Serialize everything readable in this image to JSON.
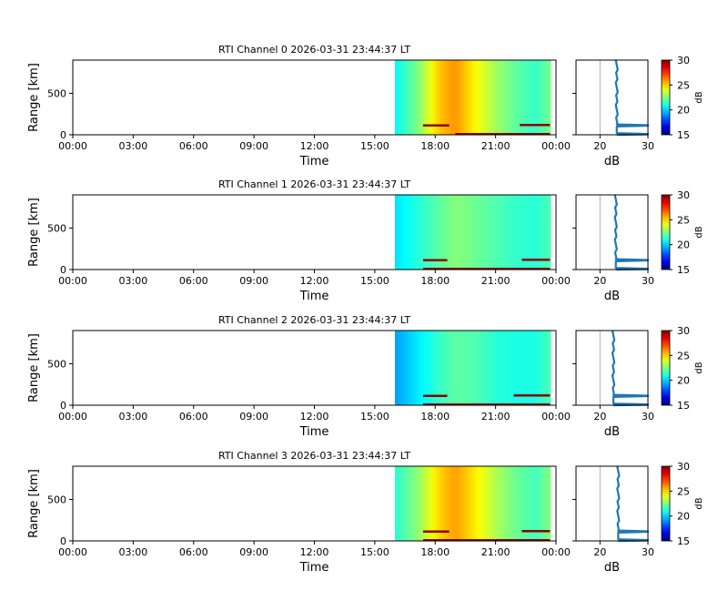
{
  "chart_data": [
    {
      "type": "heatmap",
      "title": "RTI Channel 0 2026-03-31 23:44:37 LT",
      "xlabel": "Time",
      "ylabel": "Range [km]",
      "xticks": [
        "00:00",
        "03:00",
        "06:00",
        "09:00",
        "12:00",
        "15:00",
        "18:00",
        "21:00",
        "00:00"
      ],
      "xlim_hours": [
        0,
        24
      ],
      "yticks": [
        "0",
        "500"
      ],
      "ylim": [
        0,
        900
      ],
      "data_start_hour": 16.0,
      "data_end_hour": 23.75,
      "noise_profile_db": [
        [
          16.0,
          20.6
        ],
        [
          17.2,
          22.6
        ],
        [
          18.2,
          25.2
        ],
        [
          19.0,
          26.0
        ],
        [
          20.0,
          24.4
        ],
        [
          21.0,
          23.0
        ],
        [
          22.0,
          22.0
        ],
        [
          23.0,
          21.4
        ],
        [
          23.75,
          22.4
        ]
      ],
      "echo_bands": [
        {
          "start": 17.4,
          "end": 18.7,
          "range_km": 110
        },
        {
          "start": 19.0,
          "end": 23.7,
          "range_km": 5
        },
        {
          "start": 22.2,
          "end": 23.7,
          "range_km": 115
        }
      ],
      "profile": {
        "xlabel": "dB",
        "xticks": [
          "20",
          "30"
        ],
        "xlim": [
          15,
          30
        ],
        "noise_level_db": 23.5,
        "echo_level_db": 30
      },
      "colorbar": {
        "label": "dB",
        "ticks": [
          "15",
          "20",
          "25",
          "30"
        ],
        "range": [
          15,
          30
        ]
      }
    },
    {
      "type": "heatmap",
      "title": "RTI Channel 1 2026-03-31 23:44:37 LT",
      "xlabel": "Time",
      "ylabel": "Range [km]",
      "xticks": [
        "00:00",
        "03:00",
        "06:00",
        "09:00",
        "12:00",
        "15:00",
        "18:00",
        "21:00",
        "00:00"
      ],
      "xlim_hours": [
        0,
        24
      ],
      "yticks": [
        "0",
        "500"
      ],
      "ylim": [
        0,
        900
      ],
      "data_start_hour": 16.0,
      "data_end_hour": 23.75,
      "noise_profile_db": [
        [
          16.0,
          20.2
        ],
        [
          17.2,
          21.2
        ],
        [
          18.2,
          22.0
        ],
        [
          19.0,
          22.6
        ],
        [
          20.0,
          22.2
        ],
        [
          21.0,
          21.8
        ],
        [
          22.0,
          21.4
        ],
        [
          23.0,
          21.2
        ],
        [
          23.75,
          21.8
        ]
      ],
      "echo_bands": [
        {
          "start": 17.4,
          "end": 18.6,
          "range_km": 110
        },
        {
          "start": 17.4,
          "end": 23.7,
          "range_km": 5
        },
        {
          "start": 22.3,
          "end": 23.7,
          "range_km": 115
        }
      ],
      "profile": {
        "xlabel": "dB",
        "xticks": [
          "20",
          "30"
        ],
        "xlim": [
          15,
          30
        ],
        "noise_level_db": 23.3,
        "echo_level_db": 30
      },
      "colorbar": {
        "label": "dB",
        "ticks": [
          "15",
          "20",
          "25",
          "30"
        ],
        "range": [
          15,
          30
        ]
      }
    },
    {
      "type": "heatmap",
      "title": "RTI Channel 2 2026-03-31 23:44:37 LT",
      "xlabel": "Time",
      "ylabel": "Range [km]",
      "xticks": [
        "00:00",
        "03:00",
        "06:00",
        "09:00",
        "12:00",
        "15:00",
        "18:00",
        "21:00",
        "00:00"
      ],
      "xlim_hours": [
        0,
        24
      ],
      "yticks": [
        "0",
        "500"
      ],
      "ylim": [
        0,
        900
      ],
      "data_start_hour": 16.0,
      "data_end_hour": 23.75,
      "noise_profile_db": [
        [
          16.0,
          19.2
        ],
        [
          17.2,
          20.4
        ],
        [
          18.2,
          21.4
        ],
        [
          19.0,
          22.0
        ],
        [
          20.0,
          21.8
        ],
        [
          21.0,
          21.2
        ],
        [
          22.0,
          21.0
        ],
        [
          23.0,
          21.0
        ],
        [
          23.75,
          21.8
        ]
      ],
      "echo_bands": [
        {
          "start": 17.4,
          "end": 18.6,
          "range_km": 110
        },
        {
          "start": 17.4,
          "end": 23.7,
          "range_km": 5
        },
        {
          "start": 21.9,
          "end": 23.7,
          "range_km": 115
        }
      ],
      "profile": {
        "xlabel": "dB",
        "xticks": [
          "20",
          "30"
        ],
        "xlim": [
          15,
          30
        ],
        "noise_level_db": 22.8,
        "echo_level_db": 30
      },
      "colorbar": {
        "label": "dB",
        "ticks": [
          "15",
          "20",
          "25",
          "30"
        ],
        "range": [
          15,
          30
        ]
      }
    },
    {
      "type": "heatmap",
      "title": "RTI Channel 3 2026-03-31 23:44:37 LT",
      "xlabel": "Time",
      "ylabel": "Range [km]",
      "xticks": [
        "00:00",
        "03:00",
        "06:00",
        "09:00",
        "12:00",
        "15:00",
        "18:00",
        "21:00",
        "00:00"
      ],
      "xlim_hours": [
        0,
        24
      ],
      "yticks": [
        "0",
        "500"
      ],
      "ylim": [
        0,
        900
      ],
      "data_start_hour": 16.0,
      "data_end_hour": 23.75,
      "noise_profile_db": [
        [
          16.0,
          21.2
        ],
        [
          17.2,
          22.8
        ],
        [
          18.2,
          25.0
        ],
        [
          19.0,
          25.8
        ],
        [
          20.0,
          24.6
        ],
        [
          21.0,
          23.2
        ],
        [
          22.0,
          22.2
        ],
        [
          23.0,
          21.6
        ],
        [
          23.75,
          22.6
        ]
      ],
      "echo_bands": [
        {
          "start": 17.4,
          "end": 18.7,
          "range_km": 110
        },
        {
          "start": 17.4,
          "end": 23.7,
          "range_km": 5
        },
        {
          "start": 22.3,
          "end": 23.7,
          "range_km": 115
        }
      ],
      "profile": {
        "xlabel": "dB",
        "xticks": [
          "20",
          "30"
        ],
        "xlim": [
          15,
          30
        ],
        "noise_level_db": 23.8,
        "echo_level_db": 30
      },
      "colorbar": {
        "label": "dB",
        "ticks": [
          "15",
          "20",
          "25",
          "30"
        ],
        "range": [
          15,
          30
        ]
      }
    }
  ]
}
